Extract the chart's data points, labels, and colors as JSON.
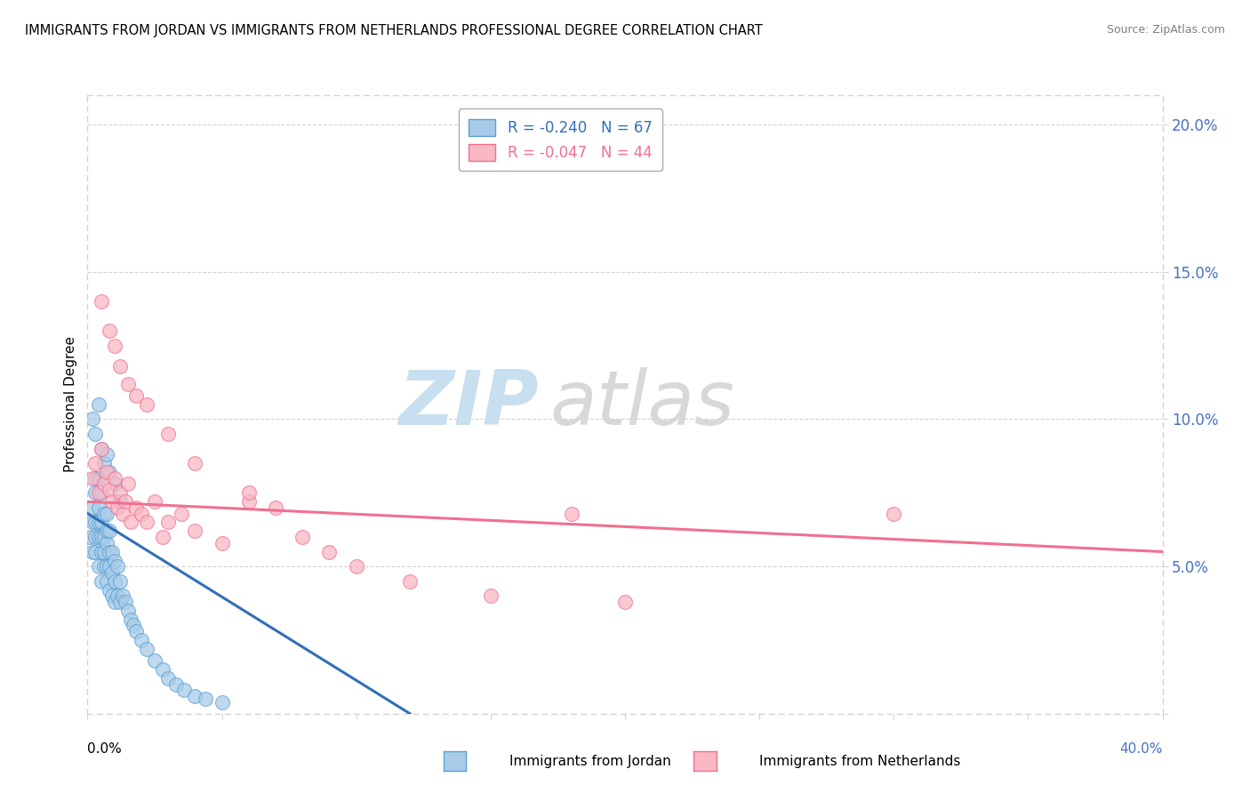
{
  "title": "IMMIGRANTS FROM JORDAN VS IMMIGRANTS FROM NETHERLANDS PROFESSIONAL DEGREE CORRELATION CHART",
  "source": "Source: ZipAtlas.com",
  "ylabel": "Professional Degree",
  "xlim": [
    0.0,
    0.4
  ],
  "ylim": [
    0.0,
    0.21
  ],
  "legend1_label": "R = -0.240   N = 67",
  "legend2_label": "R = -0.047   N = 44",
  "jordan_color": "#a8cce8",
  "jordan_edge_color": "#5a9fd4",
  "netherlands_color": "#f9b8c4",
  "netherlands_edge_color": "#f07090",
  "jordan_line_color": "#3070b8",
  "netherlands_line_color": "#f07090",
  "watermark_zip_color": "#c8dff0",
  "watermark_atlas_color": "#d8d8d8",
  "jordan_x": [
    0.001,
    0.002,
    0.002,
    0.002,
    0.003,
    0.003,
    0.003,
    0.003,
    0.003,
    0.004,
    0.004,
    0.004,
    0.004,
    0.004,
    0.005,
    0.005,
    0.005,
    0.005,
    0.005,
    0.006,
    0.006,
    0.006,
    0.006,
    0.007,
    0.007,
    0.007,
    0.007,
    0.007,
    0.008,
    0.008,
    0.008,
    0.008,
    0.009,
    0.009,
    0.009,
    0.01,
    0.01,
    0.01,
    0.011,
    0.011,
    0.012,
    0.012,
    0.013,
    0.014,
    0.015,
    0.016,
    0.017,
    0.018,
    0.02,
    0.022,
    0.025,
    0.028,
    0.03,
    0.033,
    0.036,
    0.04,
    0.044,
    0.05,
    0.002,
    0.003,
    0.004,
    0.005,
    0.006,
    0.007,
    0.008,
    0.01,
    0.012
  ],
  "jordan_y": [
    0.06,
    0.055,
    0.065,
    0.07,
    0.055,
    0.06,
    0.065,
    0.075,
    0.08,
    0.05,
    0.06,
    0.065,
    0.07,
    0.08,
    0.045,
    0.055,
    0.06,
    0.065,
    0.075,
    0.05,
    0.055,
    0.06,
    0.068,
    0.045,
    0.05,
    0.058,
    0.062,
    0.068,
    0.042,
    0.05,
    0.055,
    0.062,
    0.04,
    0.048,
    0.055,
    0.038,
    0.045,
    0.052,
    0.04,
    0.05,
    0.038,
    0.045,
    0.04,
    0.038,
    0.035,
    0.032,
    0.03,
    0.028,
    0.025,
    0.022,
    0.018,
    0.015,
    0.012,
    0.01,
    0.008,
    0.006,
    0.005,
    0.004,
    0.1,
    0.095,
    0.105,
    0.09,
    0.085,
    0.088,
    0.082,
    0.078,
    0.072
  ],
  "netherlands_x": [
    0.002,
    0.003,
    0.004,
    0.005,
    0.006,
    0.007,
    0.008,
    0.009,
    0.01,
    0.011,
    0.012,
    0.013,
    0.014,
    0.015,
    0.016,
    0.018,
    0.02,
    0.022,
    0.025,
    0.028,
    0.03,
    0.035,
    0.04,
    0.05,
    0.06,
    0.07,
    0.08,
    0.09,
    0.1,
    0.12,
    0.15,
    0.2,
    0.005,
    0.008,
    0.01,
    0.012,
    0.015,
    0.018,
    0.022,
    0.03,
    0.04,
    0.06,
    0.3,
    0.18
  ],
  "netherlands_y": [
    0.08,
    0.085,
    0.075,
    0.09,
    0.078,
    0.082,
    0.076,
    0.072,
    0.08,
    0.07,
    0.075,
    0.068,
    0.072,
    0.078,
    0.065,
    0.07,
    0.068,
    0.065,
    0.072,
    0.06,
    0.065,
    0.068,
    0.062,
    0.058,
    0.072,
    0.07,
    0.06,
    0.055,
    0.05,
    0.045,
    0.04,
    0.038,
    0.14,
    0.13,
    0.125,
    0.118,
    0.112,
    0.108,
    0.105,
    0.095,
    0.085,
    0.075,
    0.068,
    0.068
  ],
  "jordan_trend_x": [
    0.0,
    0.12
  ],
  "jordan_trend_y": [
    0.068,
    0.0
  ],
  "netherlands_trend_x": [
    0.0,
    0.4
  ],
  "netherlands_trend_y": [
    0.072,
    0.055
  ]
}
